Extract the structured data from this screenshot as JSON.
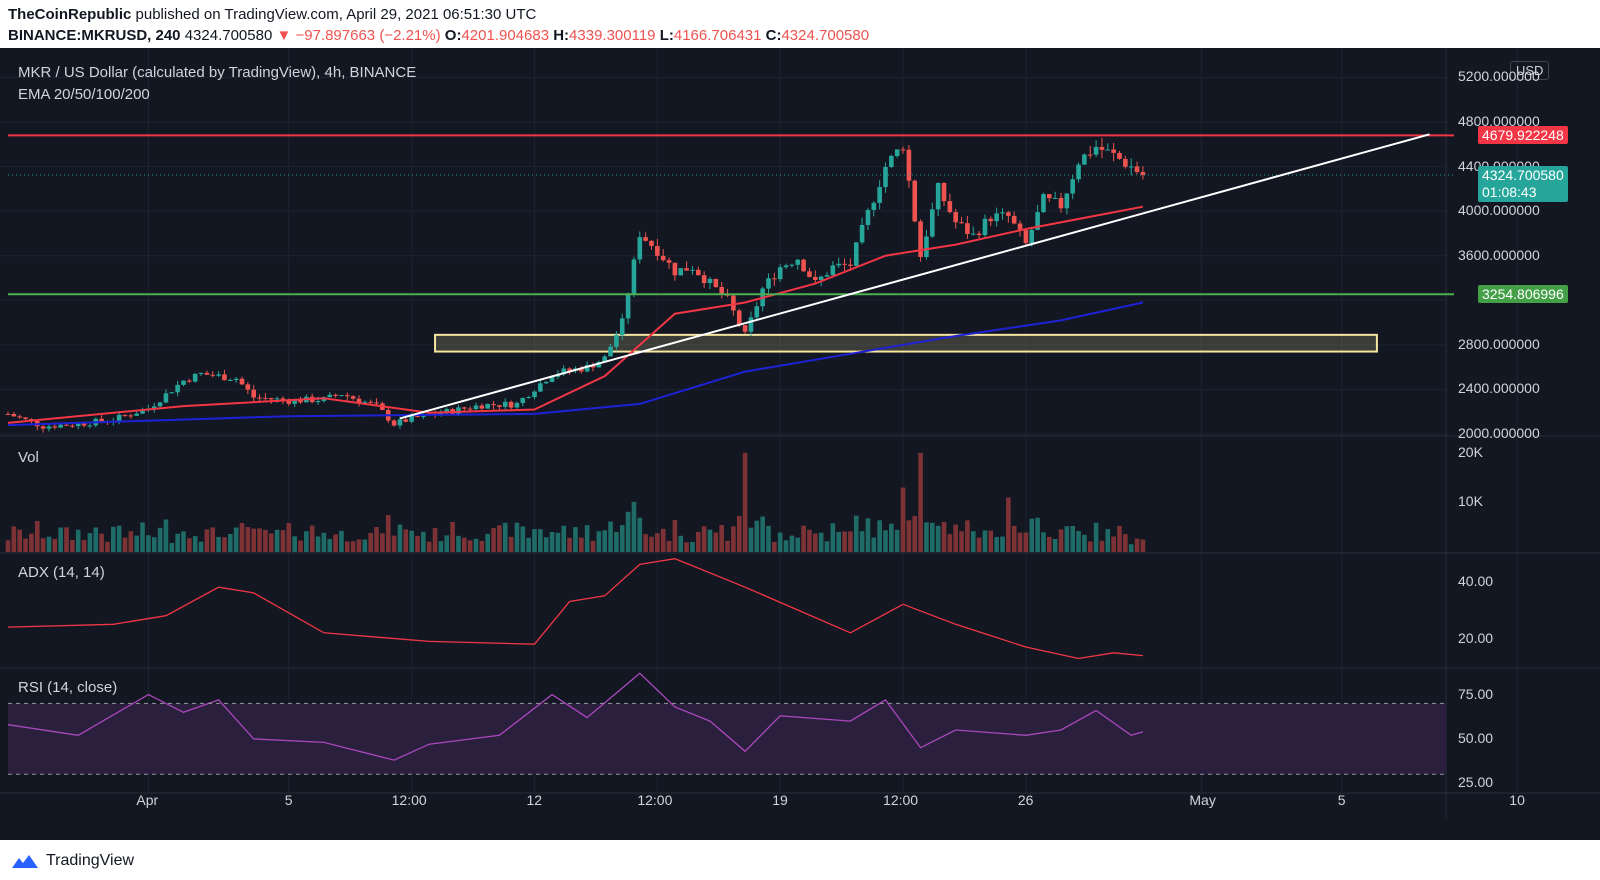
{
  "header": {
    "publisher": "TheCoinRepublic",
    "published_text": "published on TradingView.com, April 29, 2021 06:51:30 UTC",
    "symbol": "BINANCE:MKRUSD, 240",
    "last": "4324.700580",
    "change": "▼ −97.897663 (−2.21%)",
    "o_label": "O:",
    "o": "4201.904683",
    "h_label": "H:",
    "h": "4339.300119",
    "l_label": "L:",
    "l": "4166.706431",
    "c_label": "C:",
    "c": "4324.700580"
  },
  "legend": {
    "title": "MKR / US Dollar (calculated by TradingView), 4h, BINANCE",
    "ema": "EMA 20/50/100/200",
    "vol": "Vol",
    "adx": "ADX (14, 14)",
    "rsi": "RSI (14, close)"
  },
  "currency_button": "USD",
  "price_axis": [
    "5200.000000",
    "4800.000000",
    "4400.000000",
    "4000.000000",
    "3600.000000",
    "2800.000000",
    "2400.000000",
    "2000.000000"
  ],
  "vol_axis": [
    "20K",
    "10K"
  ],
  "adx_axis": [
    "40.00",
    "20.00"
  ],
  "rsi_axis": [
    "75.00",
    "50.00",
    "25.00"
  ],
  "time_axis": [
    "Apr",
    "5",
    "12:00",
    "12",
    "12:00",
    "19",
    "12:00",
    "26",
    "May",
    "5",
    "10",
    "12:00"
  ],
  "tags": {
    "resistance": "4679.922248",
    "current": "4324.700580",
    "countdown": "01:08:43",
    "support": "3254.806996"
  },
  "colors": {
    "resistance": "#f23645",
    "support": "#4caf50",
    "current": "#26a69a",
    "ema20": "#f23645",
    "ema100": "#1e22d6",
    "trendline": "#ffffff",
    "zone": "#f5e6a0",
    "up": "#26a69a",
    "down": "#ef5350",
    "adx": "#f23645",
    "rsi": "#ab47bc",
    "rsi_band": "#2a1f3d"
  },
  "footer": {
    "brand": "TradingView"
  },
  "chart_data": {
    "type": "candlestick",
    "symbol": "BINANCE:MKRUSD",
    "interval": "4h",
    "price_range": [
      2000,
      5350
    ],
    "levels": {
      "resistance": 4679.922248,
      "support": 3254.806996,
      "zone": [
        2740,
        2890
      ]
    },
    "trendline": {
      "from": [
        "Apr 8 04:00",
        2140
      ],
      "to": [
        "May 7 12:00",
        4690
      ]
    },
    "close_path": [
      [
        "Mar 28 00:00",
        2180
      ],
      [
        "Mar 29 00:00",
        2070
      ],
      [
        "Mar 30 00:00",
        2090
      ],
      [
        "Mar 31 00:00",
        2130
      ],
      [
        "Apr 1 00:00",
        2230
      ],
      [
        "Apr 2 00:00",
        2480
      ],
      [
        "Apr 2 12:00",
        2540
      ],
      [
        "Apr 3 12:00",
        2500
      ],
      [
        "Apr 4 00:00",
        2330
      ],
      [
        "Apr 5 00:00",
        2300
      ],
      [
        "Apr 6 00:00",
        2310
      ],
      [
        "Apr 6 12:00",
        2360
      ],
      [
        "Apr 7 12:00",
        2250
      ],
      [
        "Apr 8 00:00",
        2090
      ],
      [
        "Apr 8 12:00",
        2140
      ],
      [
        "Apr 9 12:00",
        2200
      ],
      [
        "Apr 10 12:00",
        2260
      ],
      [
        "Apr 11 12:00",
        2270
      ],
      [
        "Apr 12 00:00",
        2410
      ],
      [
        "Apr 12 12:00",
        2540
      ],
      [
        "Apr 13 12:00",
        2600
      ],
      [
        "Apr 14 00:00",
        2680
      ],
      [
        "Apr 14 12:00",
        3000
      ],
      [
        "Apr 15 00:00",
        3800
      ],
      [
        "Apr 15 12:00",
        3650
      ],
      [
        "Apr 16 00:00",
        3460
      ],
      [
        "Apr 16 12:00",
        3500
      ],
      [
        "Apr 17 00:00",
        3350
      ],
      [
        "Apr 17 12:00",
        3200
      ],
      [
        "Apr 18 00:00",
        2880
      ],
      [
        "Apr 18 12:00",
        3300
      ],
      [
        "Apr 19 00:00",
        3500
      ],
      [
        "Apr 19 12:00",
        3580
      ],
      [
        "Apr 20 00:00",
        3350
      ],
      [
        "Apr 20 12:00",
        3500
      ],
      [
        "Apr 21 00:00",
        3520
      ],
      [
        "Apr 21 12:00",
        3980
      ],
      [
        "Apr 22 00:00",
        4400
      ],
      [
        "Apr 22 12:00",
        4600
      ],
      [
        "Apr 23 00:00",
        3600
      ],
      [
        "Apr 23 12:00",
        4200
      ],
      [
        "Apr 24 00:00",
        3900
      ],
      [
        "Apr 24 12:00",
        3780
      ],
      [
        "Apr 25 00:00",
        3950
      ],
      [
        "Apr 25 12:00",
        3950
      ],
      [
        "Apr 26 00:00",
        3700
      ],
      [
        "Apr 26 12:00",
        4100
      ],
      [
        "Apr 27 00:00",
        4050
      ],
      [
        "Apr 27 12:00",
        4450
      ],
      [
        "Apr 28 00:00",
        4580
      ],
      [
        "Apr 28 12:00",
        4500
      ],
      [
        "Apr 29 00:00",
        4400
      ],
      [
        "Apr 29 08:00",
        4324.70058
      ]
    ],
    "indicators": {
      "ema20": [
        [
          "Mar 28 00:00",
          2100
        ],
        [
          "Apr 2 00:00",
          2250
        ],
        [
          "Apr 6 00:00",
          2320
        ],
        [
          "Apr 9 00:00",
          2190
        ],
        [
          "Apr 12 00:00",
          2220
        ],
        [
          "Apr 14 00:00",
          2520
        ],
        [
          "Apr 16 00:00",
          3080
        ],
        [
          "Apr 18 00:00",
          3180
        ],
        [
          "Apr 20 00:00",
          3350
        ],
        [
          "Apr 22 00:00",
          3600
        ],
        [
          "Apr 24 00:00",
          3700
        ],
        [
          "Apr 26 00:00",
          3840
        ],
        [
          "Apr 28 00:00",
          3960
        ],
        [
          "Apr 29 08:00",
          4040
        ]
      ],
      "ema100": [
        [
          "Mar 28 00:00",
          2080
        ],
        [
          "Apr 5 00:00",
          2160
        ],
        [
          "Apr 12 00:00",
          2180
        ],
        [
          "Apr 15 00:00",
          2270
        ],
        [
          "Apr 18 00:00",
          2560
        ],
        [
          "Apr 21 00:00",
          2720
        ],
        [
          "Apr 24 00:00",
          2880
        ],
        [
          "Apr 27 00:00",
          3020
        ],
        [
          "Apr 29 08:00",
          3180
        ]
      ]
    },
    "volume": {
      "range": [
        0,
        23000
      ],
      "spikes": [
        [
          "Apr 18 00:00",
          20000
        ],
        [
          "Apr 23 00:00",
          20000
        ],
        [
          "Apr 22 12:00",
          13000
        ],
        [
          "Apr 25 12:00",
          11000
        ]
      ]
    },
    "adx": {
      "range": [
        10,
        50
      ],
      "values": [
        [
          "Mar 28 00:00",
          24
        ],
        [
          "Mar 31 00:00",
          25
        ],
        [
          "Apr 1 12:00",
          28
        ],
        [
          "Apr 3 00:00",
          38
        ],
        [
          "Apr 4 00:00",
          36
        ],
        [
          "Apr 6 00:00",
          22
        ],
        [
          "Apr 9 00:00",
          19
        ],
        [
          "Apr 12 00:00",
          18
        ],
        [
          "Apr 13 00:00",
          33
        ],
        [
          "Apr 14 00:00",
          35
        ],
        [
          "Apr 15 00:00",
          46
        ],
        [
          "Apr 16 00:00",
          48
        ],
        [
          "Apr 18 00:00",
          38
        ],
        [
          "Apr 21 00:00",
          22
        ],
        [
          "Apr 22 12:00",
          32
        ],
        [
          "Apr 24 00:00",
          25
        ],
        [
          "Apr 26 00:00",
          17
        ],
        [
          "Apr 27 12:00",
          13
        ],
        [
          "Apr 28 12:00",
          15
        ],
        [
          "Apr 29 08:00",
          14
        ]
      ]
    },
    "rsi": {
      "range": [
        20,
        90
      ],
      "bands": [
        30,
        70
      ],
      "values": [
        [
          "Mar 28 00:00",
          58
        ],
        [
          "Mar 30 00:00",
          52
        ],
        [
          "Apr 1 00:00",
          75
        ],
        [
          "Apr 2 00:00",
          65
        ],
        [
          "Apr 3 00:00",
          72
        ],
        [
          "Apr 4 00:00",
          50
        ],
        [
          "Apr 6 00:00",
          48
        ],
        [
          "Apr 8 00:00",
          38
        ],
        [
          "Apr 9 00:00",
          47
        ],
        [
          "Apr 11 00:00",
          52
        ],
        [
          "Apr 12 12:00",
          75
        ],
        [
          "Apr 13 12:00",
          62
        ],
        [
          "Apr 15 00:00",
          87
        ],
        [
          "Apr 16 00:00",
          68
        ],
        [
          "Apr 17 00:00",
          60
        ],
        [
          "Apr 18 00:00",
          43
        ],
        [
          "Apr 19 00:00",
          63
        ],
        [
          "Apr 21 00:00",
          60
        ],
        [
          "Apr 22 00:00",
          72
        ],
        [
          "Apr 23 00:00",
          45
        ],
        [
          "Apr 24 00:00",
          55
        ],
        [
          "Apr 26 00:00",
          52
        ],
        [
          "Apr 27 00:00",
          55
        ],
        [
          "Apr 28 00:00",
          66
        ],
        [
          "Apr 29 00:00",
          52
        ],
        [
          "Apr 29 08:00",
          54
        ]
      ]
    }
  }
}
